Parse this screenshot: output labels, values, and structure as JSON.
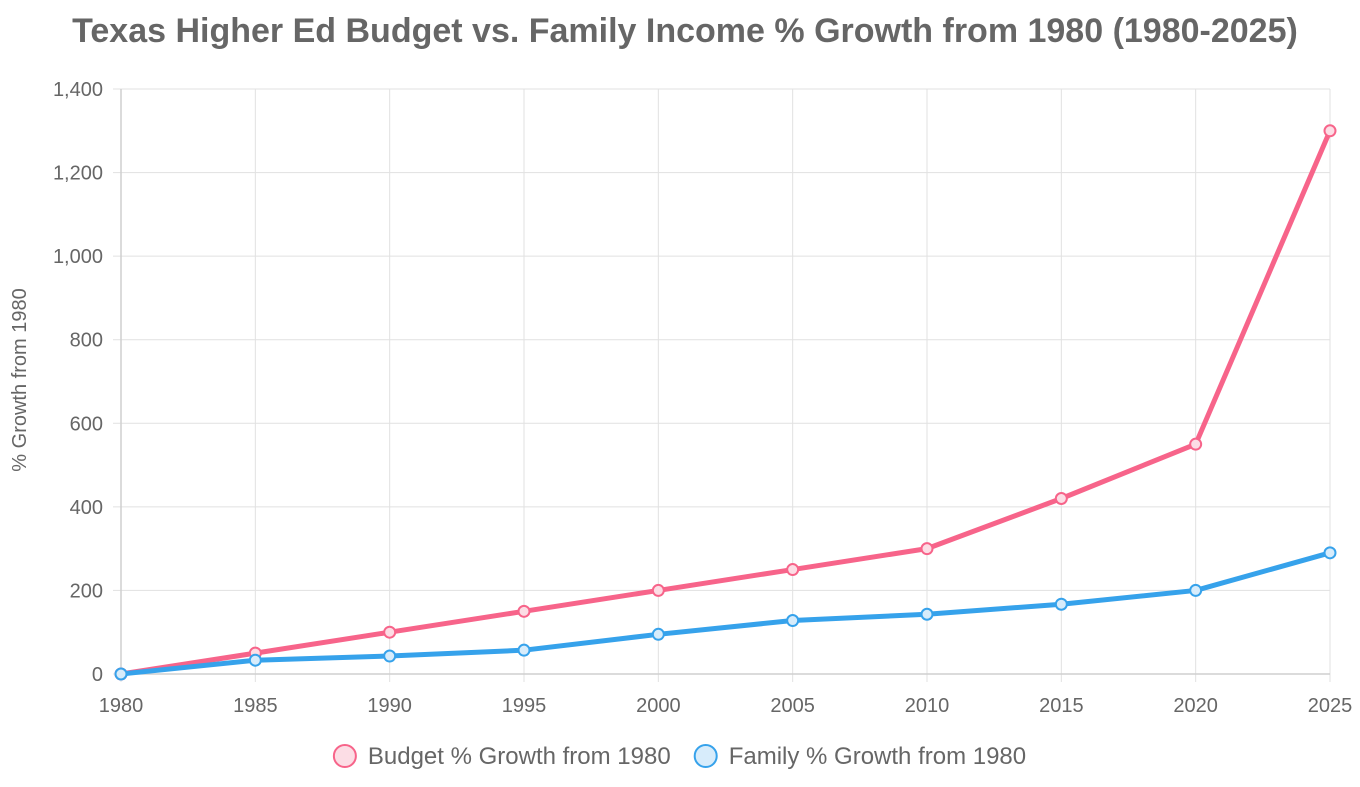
{
  "chart_data": {
    "type": "line",
    "title": "Texas Higher Ed Budget vs. Family Income % Growth from 1980 (1980-2025)",
    "xlabel": "",
    "ylabel": "% Growth from 1980",
    "categories": [
      "1980",
      "1985",
      "1990",
      "1995",
      "2000",
      "2005",
      "2010",
      "2015",
      "2020",
      "2025"
    ],
    "ylim": [
      0,
      1400
    ],
    "yticks": [
      0,
      200,
      400,
      600,
      800,
      1000,
      1200,
      1400
    ],
    "ytick_labels": [
      "0",
      "200",
      "400",
      "600",
      "800",
      "1,000",
      "1,200",
      "1,400"
    ],
    "grid": true,
    "legend_position": "bottom",
    "series": [
      {
        "name": "Budget % Growth from 1980",
        "color": "#f7648a",
        "fill": "#fcdde5",
        "values": [
          0,
          50,
          100,
          150,
          200,
          250,
          300,
          420,
          550,
          1300
        ]
      },
      {
        "name": "Family % Growth from 1980",
        "color": "#36a2eb",
        "fill": "#d7ecfb",
        "values": [
          0,
          33,
          43,
          57,
          95,
          128,
          143,
          167,
          200,
          290
        ]
      }
    ]
  }
}
